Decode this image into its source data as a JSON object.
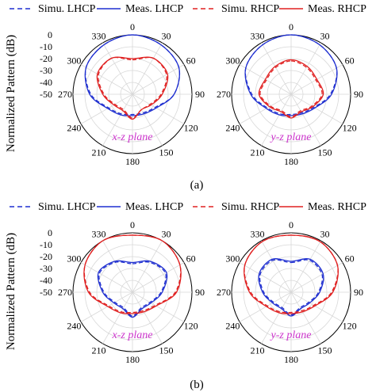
{
  "legend": [
    {
      "label": "Simu. LHCP",
      "color": "#1f2fd0",
      "dash": "dashed"
    },
    {
      "label": "Meas. LHCP",
      "color": "#1f2fd0",
      "dash": "solid"
    },
    {
      "label": "Simu. RHCP",
      "color": "#e02020",
      "dash": "dashed"
    },
    {
      "label": "Meas. RHCP",
      "color": "#e02020",
      "dash": "solid"
    }
  ],
  "ylabel": "Normalized Pattern (dB)",
  "radial_ticks": [
    "0",
    "-10",
    "-20",
    "-30",
    "-40",
    "-50"
  ],
  "angle_ticks": [
    {
      "deg": 0,
      "label": "0"
    },
    {
      "deg": 30,
      "label": "30"
    },
    {
      "deg": 60,
      "label": "60"
    },
    {
      "deg": 90,
      "label": "90"
    },
    {
      "deg": 120,
      "label": "120"
    },
    {
      "deg": 150,
      "label": "150"
    },
    {
      "deg": 180,
      "label": "180"
    },
    {
      "deg": 210,
      "label": "210"
    },
    {
      "deg": 240,
      "label": "240"
    },
    {
      "deg": 270,
      "label": "270"
    },
    {
      "deg": 300,
      "label": "300"
    },
    {
      "deg": 330,
      "label": "330"
    }
  ],
  "colors": {
    "lhcp": "#1f2fd0",
    "rhcp": "#e02020",
    "plane_label": "#cc33cc"
  },
  "chart_data": [
    {
      "type": "polar-line",
      "panel": "(a)",
      "plane_label": "x-z plane",
      "rlim": [
        -50,
        0
      ],
      "theta_deg": [
        0,
        30,
        60,
        90,
        120,
        150,
        180,
        210,
        240,
        270,
        300,
        330
      ],
      "series": [
        {
          "name": "Simu. LHCP",
          "values": [
            0,
            -2,
            -5,
            -15,
            -28,
            -32,
            -33,
            -31,
            -27,
            -15,
            -5,
            -2
          ]
        },
        {
          "name": "Meas. LHCP",
          "values": [
            0,
            -2,
            -5,
            -15,
            -27,
            -31,
            -32,
            -30,
            -26,
            -14,
            -5,
            -2
          ]
        },
        {
          "name": "Simu. RHCP",
          "values": [
            -21,
            -15,
            -17,
            -26,
            -33,
            -35,
            -30,
            -35,
            -33,
            -26,
            -17,
            -15
          ]
        },
        {
          "name": "Meas. RHCP",
          "values": [
            -20,
            -15,
            -16,
            -25,
            -32,
            -35,
            -29,
            -34,
            -32,
            -25,
            -16,
            -15
          ]
        }
      ]
    },
    {
      "type": "polar-line",
      "panel": "(a)",
      "plane_label": "y-z plane",
      "rlim": [
        -50,
        0
      ],
      "theta_deg": [
        0,
        30,
        60,
        90,
        120,
        150,
        180,
        210,
        240,
        270,
        300,
        330
      ],
      "series": [
        {
          "name": "Simu. LHCP",
          "values": [
            0,
            -2,
            -6,
            -17,
            -28,
            -32,
            -33,
            -31,
            -27,
            -17,
            -6,
            -2
          ]
        },
        {
          "name": "Meas. LHCP",
          "values": [
            0,
            -2,
            -6,
            -16,
            -27,
            -31,
            -32,
            -30,
            -26,
            -16,
            -6,
            -2
          ]
        },
        {
          "name": "Simu. RHCP",
          "values": [
            -22,
            -24,
            -26,
            -24,
            -30,
            -34,
            -31,
            -34,
            -30,
            -24,
            -26,
            -24
          ]
        },
        {
          "name": "Meas. RHCP",
          "values": [
            -21,
            -23,
            -25,
            -23,
            -29,
            -33,
            -30,
            -33,
            -29,
            -23,
            -25,
            -23
          ]
        }
      ]
    },
    {
      "type": "polar-line",
      "panel": "(b)",
      "plane_label": "x-z plane",
      "rlim": [
        -50,
        0
      ],
      "theta_deg": [
        0,
        30,
        60,
        90,
        120,
        150,
        180,
        210,
        240,
        270,
        300,
        330
      ],
      "series": [
        {
          "name": "Simu. LHCP",
          "values": [
            -26,
            -21,
            -18,
            -26,
            -33,
            -35,
            -30,
            -35,
            -33,
            -26,
            -18,
            -21
          ]
        },
        {
          "name": "Meas. LHCP",
          "values": [
            -25,
            -20,
            -17,
            -25,
            -32,
            -34,
            -29,
            -34,
            -32,
            -25,
            -17,
            -20
          ]
        },
        {
          "name": "Simu. RHCP",
          "values": [
            -2,
            0,
            -4,
            -14,
            -28,
            -32,
            -33,
            -31,
            -27,
            -14,
            -4,
            0
          ]
        },
        {
          "name": "Meas. RHCP",
          "values": [
            -2,
            0,
            -4,
            -13,
            -27,
            -31,
            -32,
            -30,
            -26,
            -13,
            -4,
            0
          ]
        }
      ]
    },
    {
      "type": "polar-line",
      "panel": "(b)",
      "plane_label": "y-z plane",
      "rlim": [
        -50,
        0
      ],
      "theta_deg": [
        0,
        30,
        60,
        90,
        120,
        150,
        180,
        210,
        240,
        270,
        300,
        330
      ],
      "series": [
        {
          "name": "Simu. LHCP",
          "values": [
            -25,
            -19,
            -20,
            -27,
            -33,
            -35,
            -31,
            -35,
            -33,
            -27,
            -20,
            -19
          ]
        },
        {
          "name": "Meas. LHCP",
          "values": [
            -24,
            -18,
            -19,
            -26,
            -32,
            -34,
            -30,
            -34,
            -32,
            -26,
            -19,
            -18
          ]
        },
        {
          "name": "Simu. RHCP",
          "values": [
            -2,
            -1,
            -5,
            -16,
            -28,
            -32,
            -33,
            -31,
            -27,
            -16,
            -5,
            -1
          ]
        },
        {
          "name": "Meas. RHCP",
          "values": [
            -2,
            -1,
            -5,
            -15,
            -27,
            -31,
            -32,
            -30,
            -26,
            -15,
            -5,
            -1
          ]
        }
      ]
    }
  ],
  "captions": [
    "(a)",
    "(b)"
  ]
}
